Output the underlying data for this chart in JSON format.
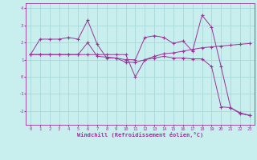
{
  "title": "",
  "xlabel": "Windchill (Refroidissement éolien,°C)",
  "background_color": "#c8eeee",
  "grid_color": "#a8d8d8",
  "line_color": "#993399",
  "xlim": [
    -0.5,
    23.5
  ],
  "ylim": [
    -2.8,
    4.3
  ],
  "yticks": [
    -2,
    -1,
    0,
    1,
    2,
    3,
    4
  ],
  "xticks": [
    0,
    1,
    2,
    3,
    4,
    5,
    6,
    7,
    8,
    9,
    10,
    11,
    12,
    13,
    14,
    15,
    16,
    17,
    18,
    19,
    20,
    21,
    22,
    23
  ],
  "series": [
    [
      1.3,
      2.2,
      2.2,
      2.2,
      2.3,
      2.2,
      3.3,
      1.9,
      1.1,
      1.1,
      1.0,
      1.0,
      2.3,
      2.4,
      2.3,
      1.95,
      2.1,
      1.5,
      3.6,
      2.9,
      0.6,
      -1.8,
      -2.1,
      -2.25
    ],
    [
      1.3,
      1.3,
      1.3,
      1.3,
      1.3,
      1.3,
      2.0,
      1.2,
      1.15,
      1.1,
      0.85,
      0.85,
      1.0,
      1.1,
      1.2,
      1.1,
      1.1,
      1.05,
      1.05,
      0.6,
      -1.75,
      -1.8,
      -2.15,
      -2.25
    ],
    [
      1.3,
      1.3,
      1.3,
      1.3,
      1.3,
      1.3,
      1.3,
      1.3,
      1.3,
      1.3,
      1.3,
      0.0,
      1.0,
      1.2,
      1.35,
      1.4,
      1.5,
      1.6,
      1.7,
      1.75,
      1.8,
      1.85,
      1.9,
      1.95
    ]
  ]
}
